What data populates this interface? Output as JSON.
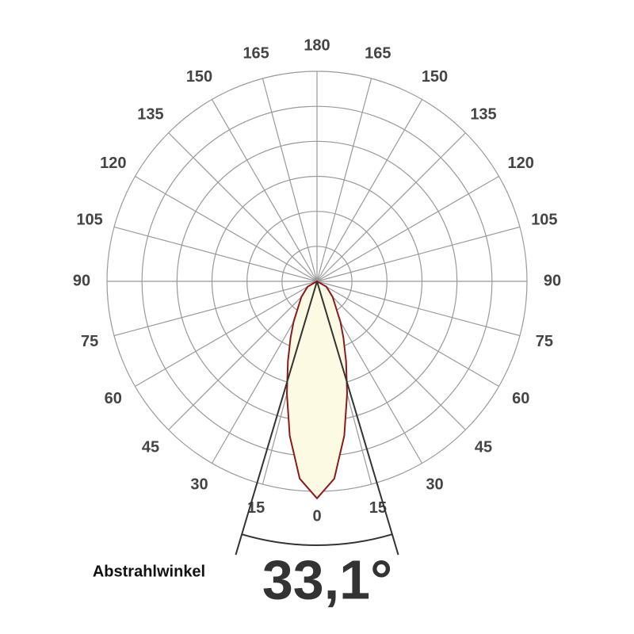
{
  "chart_data": {
    "type": "polar",
    "theta_ticks": [
      0,
      15,
      30,
      45,
      60,
      75,
      90,
      105,
      120,
      135,
      150,
      165,
      180
    ],
    "rlim": [
      0,
      6
    ],
    "rticks": [
      1,
      2,
      3,
      4,
      5,
      6
    ],
    "grid": true,
    "series": [
      {
        "color": "#8b1a1a",
        "fill": "#fdfae4",
        "theta": [
          -90,
          -60,
          -45,
          -30,
          -25,
          -20,
          -15,
          -10,
          -5,
          0,
          5,
          10,
          15,
          20,
          25,
          30,
          45,
          60,
          90
        ],
        "values": [
          0,
          0.31,
          0.63,
          1.34,
          1.79,
          2.43,
          3.32,
          4.48,
          5.66,
          6.2,
          5.66,
          4.48,
          3.32,
          2.43,
          1.79,
          1.34,
          0.63,
          0.31,
          0
        ]
      }
    ],
    "annotation": {
      "label": "Abstrahlwinkel",
      "value": 33.1,
      "value_label": "33,1°"
    }
  }
}
